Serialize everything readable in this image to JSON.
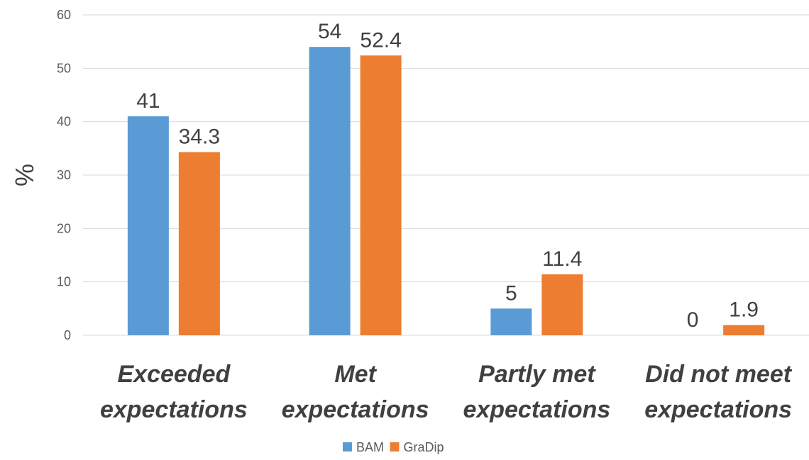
{
  "chart_data": {
    "type": "bar",
    "title": "",
    "xlabel": "",
    "ylabel": "%",
    "ylim": [
      0,
      60
    ],
    "yticks": [
      0,
      10,
      20,
      30,
      40,
      50,
      60
    ],
    "grid": true,
    "legend_position": "bottom",
    "categories": [
      [
        "Exceeded",
        "expectations"
      ],
      [
        "Met",
        "expectations"
      ],
      [
        "Partly met",
        "expectations"
      ],
      [
        "Did not meet",
        "expectations"
      ]
    ],
    "series": [
      {
        "name": "BAM",
        "color": "#5b9bd5",
        "values": [
          41,
          54,
          5,
          0
        ],
        "labels": [
          "41",
          "54",
          "5",
          "0"
        ]
      },
      {
        "name": "GraDip",
        "color": "#ed7d31",
        "values": [
          34.3,
          52.4,
          11.4,
          1.9
        ],
        "labels": [
          "34.3",
          "52.4",
          "11.4",
          "1.9"
        ]
      }
    ]
  }
}
